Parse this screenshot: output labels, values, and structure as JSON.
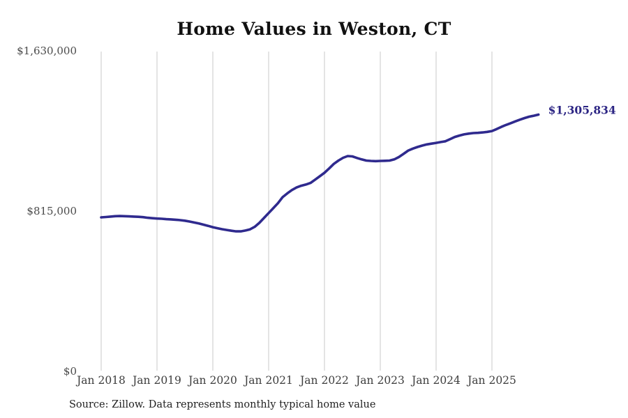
{
  "page": {
    "title": "Home Values in Weston, CT",
    "source_note": "Source: Zillow. Data represents monthly typical home value"
  },
  "chart_data": {
    "type": "line",
    "title": "Home Values in Weston, CT",
    "xlabel": "",
    "ylabel": "",
    "ylim": [
      0,
      1630000
    ],
    "y_ticks": [
      0,
      815000,
      1630000
    ],
    "y_tick_labels": [
      "$0",
      "$815,000",
      "$1,630,000"
    ],
    "x_tick_labels": [
      "Jan 2018",
      "Jan 2019",
      "Jan 2020",
      "Jan 2021",
      "Jan 2022",
      "Jan 2023",
      "Jan 2024",
      "Jan 2025"
    ],
    "grid": "vertical-only",
    "legend": "none",
    "end_label": "$1,305,834",
    "end_value": 1305834,
    "line_color": "#2f2a8e",
    "annotation_color": "#2b2483",
    "gridline_color": "#c9c9c9",
    "source": "Source: Zillow. Data represents monthly typical home value",
    "x": [
      "2018-01",
      "2018-02",
      "2018-03",
      "2018-04",
      "2018-05",
      "2018-06",
      "2018-07",
      "2018-08",
      "2018-09",
      "2018-10",
      "2018-11",
      "2018-12",
      "2019-01",
      "2019-02",
      "2019-03",
      "2019-04",
      "2019-05",
      "2019-06",
      "2019-07",
      "2019-08",
      "2019-09",
      "2019-10",
      "2019-11",
      "2019-12",
      "2020-01",
      "2020-02",
      "2020-03",
      "2020-04",
      "2020-05",
      "2020-06",
      "2020-07",
      "2020-08",
      "2020-09",
      "2020-10",
      "2020-11",
      "2020-12",
      "2021-01",
      "2021-02",
      "2021-03",
      "2021-04",
      "2021-05",
      "2021-06",
      "2021-07",
      "2021-08",
      "2021-09",
      "2021-10",
      "2021-11",
      "2021-12",
      "2022-01",
      "2022-02",
      "2022-03",
      "2022-04",
      "2022-05",
      "2022-06",
      "2022-07",
      "2022-08",
      "2022-09",
      "2022-10",
      "2022-11",
      "2022-12",
      "2023-01",
      "2023-02",
      "2023-03",
      "2023-04",
      "2023-05",
      "2023-06",
      "2023-07",
      "2023-08",
      "2023-09",
      "2023-10",
      "2023-11",
      "2023-12",
      "2024-01",
      "2024-02",
      "2024-03",
      "2024-04",
      "2024-05",
      "2024-06",
      "2024-07",
      "2024-08",
      "2024-09",
      "2024-10",
      "2024-11",
      "2024-12",
      "2025-01",
      "2025-02",
      "2025-03",
      "2025-04",
      "2025-05",
      "2025-06",
      "2025-07",
      "2025-08",
      "2025-09",
      "2025-10",
      "2025-11"
    ],
    "values": [
      783000,
      785000,
      787000,
      789000,
      790000,
      789000,
      788000,
      787000,
      786000,
      784000,
      781000,
      779000,
      777000,
      776000,
      774000,
      773000,
      771000,
      769000,
      766000,
      762000,
      757000,
      752000,
      746000,
      740000,
      733000,
      728000,
      723000,
      719000,
      715000,
      712000,
      712000,
      716000,
      722000,
      735000,
      755000,
      780000,
      805000,
      830000,
      855000,
      886000,
      905000,
      922000,
      935000,
      944000,
      950000,
      958000,
      975000,
      992000,
      1010000,
      1032000,
      1055000,
      1072000,
      1086000,
      1095000,
      1093000,
      1085000,
      1078000,
      1072000,
      1070000,
      1069000,
      1070000,
      1071000,
      1072000,
      1078000,
      1090000,
      1106000,
      1123000,
      1133000,
      1141000,
      1148000,
      1154000,
      1158000,
      1162000,
      1166000,
      1170000,
      1181000,
      1192000,
      1199000,
      1205000,
      1209000,
      1212000,
      1213000,
      1215000,
      1218000,
      1222000,
      1232000,
      1243000,
      1253000,
      1262000,
      1271000,
      1280000,
      1288000,
      1295000,
      1300000,
      1305834
    ]
  }
}
